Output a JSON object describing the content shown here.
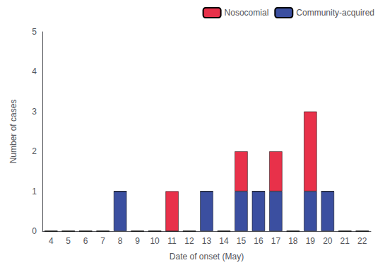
{
  "chart_data": {
    "type": "bar",
    "stacked": true,
    "xlabel": "Date of onset (May)",
    "ylabel": "Number of cases",
    "categories": [
      4,
      5,
      6,
      7,
      8,
      9,
      10,
      11,
      12,
      13,
      14,
      15,
      16,
      17,
      18,
      19,
      20,
      21,
      22
    ],
    "series": [
      {
        "name": "Community-acquired",
        "color": "#3b4fa0",
        "values": [
          0,
          0,
          0,
          0,
          1,
          0,
          0,
          0,
          0,
          1,
          0,
          1,
          1,
          1,
          0,
          1,
          1,
          0,
          0
        ]
      },
      {
        "name": "Nosocomial",
        "color": "#e8314a",
        "values": [
          0,
          0,
          0,
          0,
          0,
          0,
          0,
          1,
          0,
          0,
          0,
          1,
          0,
          1,
          0,
          2,
          0,
          0,
          0
        ]
      }
    ],
    "ylim": [
      0,
      5
    ],
    "yticks": [
      0,
      1,
      2,
      3,
      4,
      5
    ],
    "grid": false,
    "legend": "upper right"
  }
}
